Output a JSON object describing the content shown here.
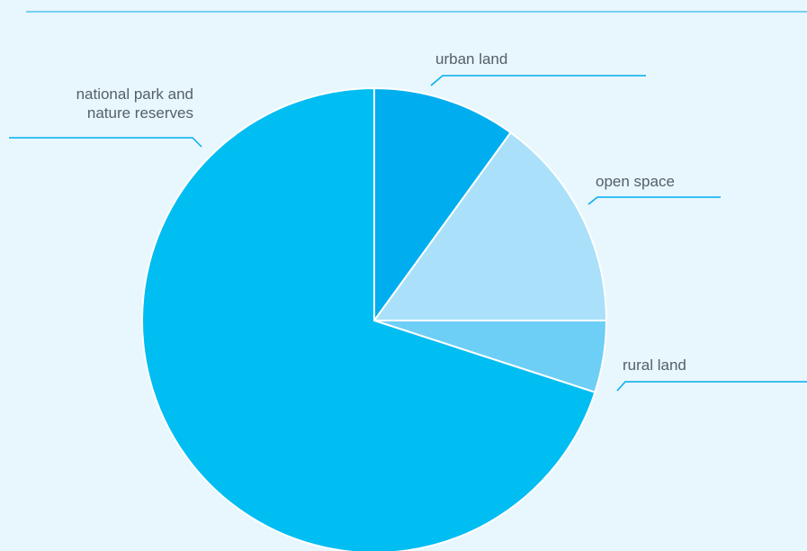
{
  "chart_data": {
    "type": "pie",
    "title": "",
    "start_angle_deg": 0,
    "direction": "clockwise",
    "series": [
      {
        "values": [
          10,
          15,
          5,
          70
        ],
        "categories": [
          "urban land",
          "open space",
          "rural land",
          "national park and\nnature reserves"
        ],
        "colors": [
          "#00aeef",
          "#aae0f9",
          "#6dcff6",
          "#00bdf2"
        ],
        "label_lines": [
          [
            "urban land"
          ],
          [
            "open space"
          ],
          [
            "rural land"
          ],
          [
            "national park and",
            "nature reserves"
          ]
        ]
      }
    ],
    "slice_border_color": "#ffffff",
    "leader_line_color": "#00aeef",
    "background_color": "#e8f6fd"
  }
}
